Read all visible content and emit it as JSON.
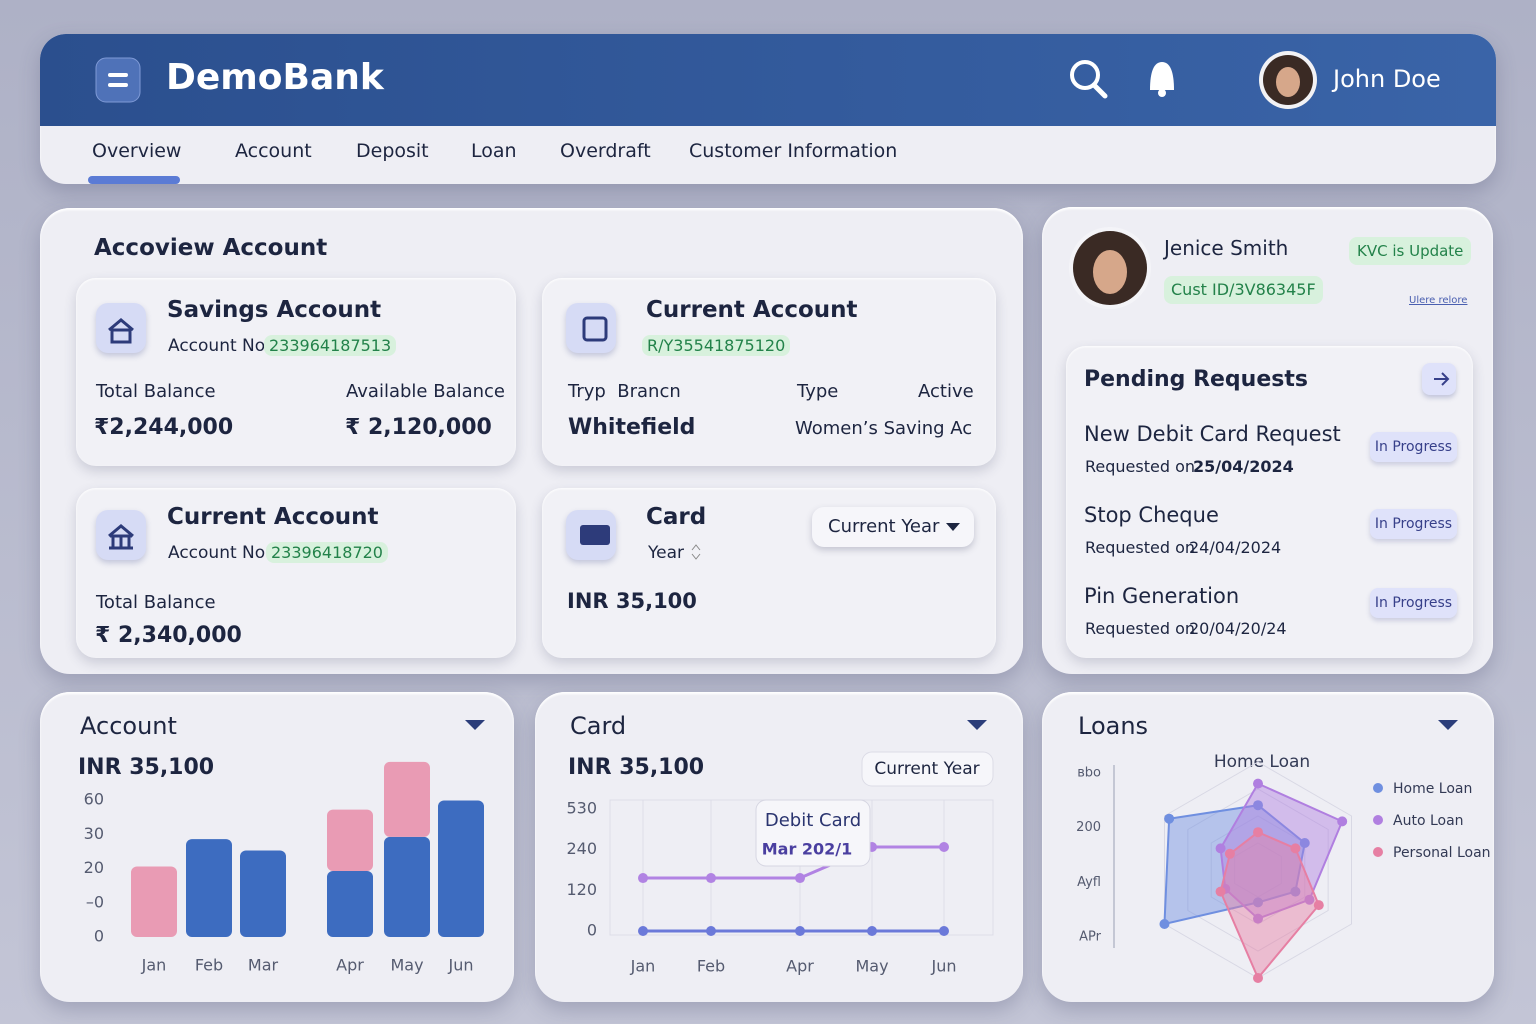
{
  "header": {
    "brand": "DemoBank",
    "user": "John Doe"
  },
  "nav": [
    "Overview",
    "Account",
    "Deposit",
    "Loan",
    "Overdraft",
    "Customer Information"
  ],
  "accounts": {
    "title": "Accoview Account",
    "cards": [
      {
        "title": "Savings Account",
        "number_label": "Account No",
        "number": "233964187513",
        "labels": [
          "Total Balance",
          "Available Balance"
        ],
        "values": [
          "₹2,244,000",
          "₹ 2,120,000"
        ]
      },
      {
        "title": "Current Account",
        "number": "R/Y35541875120",
        "labels": [
          "Tryp  Brancn",
          "Type",
          "Active"
        ],
        "values": [
          "Whitefield",
          "Women’s Saving Ac"
        ]
      },
      {
        "title": "Current Account",
        "number_label": "Account No",
        "number": "23396418720",
        "labels": [
          "Total Balance"
        ],
        "values": [
          "₹ 2,340,000"
        ]
      },
      {
        "title": "Card",
        "subtitle": "Year",
        "dropdown": "Current Year",
        "values": [
          "INR 35,100"
        ]
      }
    ]
  },
  "profile": {
    "name": "Jenice Smith",
    "status": "KVC is Update",
    "customer_id": "Cust ID/3V86345F",
    "link": "Ulere relore"
  },
  "pending": {
    "title": "Pending Requests",
    "items": [
      {
        "title": "New Debit Card Request",
        "label": "Requested on",
        "date": "25/04/2024",
        "status": "In Progress"
      },
      {
        "title": "Stop Cheque",
        "label": "Requested on",
        "date": "24/04/2024",
        "status": "In Progress"
      },
      {
        "title": "Pin Generation",
        "label": "Requested on",
        "date": "20/04/20/24",
        "status": "In Progress"
      }
    ]
  },
  "chart_data": [
    {
      "type": "bar",
      "title": "Account",
      "total": "INR 35,100",
      "categories": [
        "Jan",
        "Feb",
        "Mar",
        "Apr",
        "May",
        "Jun"
      ],
      "ylim": [
        0,
        80
      ],
      "y_labels": [
        "60",
        "30",
        "20",
        "–0",
        "0"
      ],
      "series": [
        {
          "color": "#3d6cc0",
          "values": [
            null,
            43,
            38,
            29,
            44,
            60
          ]
        },
        {
          "color": "#e99bb4",
          "values": [
            31,
            null,
            null,
            27,
            33,
            null
          ]
        }
      ]
    },
    {
      "type": "line",
      "title": "Card",
      "total": "INR 35,100",
      "badge": "Current Year",
      "tooltip": {
        "title": "Debit Card",
        "label": "Mar 202/1"
      },
      "categories": [
        "Jan",
        "Feb",
        "Apr",
        "May",
        "Jun"
      ],
      "ylim": [
        0,
        530
      ],
      "y_labels": [
        "530",
        "240",
        "120",
        "0"
      ],
      "series": [
        {
          "color": "#b183e3",
          "values": [
            230,
            230,
            230,
            365,
            365
          ]
        },
        {
          "color": "#6b79d9",
          "values": [
            0,
            0,
            0,
            0,
            0
          ]
        }
      ]
    },
    {
      "type": "radar",
      "title": "Loans",
      "subtitle": "Home Loan",
      "y_labels": [
        "ʙbo",
        "200",
        "Ayfl",
        "APr"
      ],
      "rlim": [
        0,
        100
      ],
      "series": [
        {
          "name": "Home Loan",
          "color": "#6f8fe0",
          "values": [
            60,
            50,
            40,
            30,
            100,
            95
          ]
        },
        {
          "name": "Auto Loan",
          "color": "#b07fe0",
          "values": [
            80,
            90,
            55,
            45,
            35,
            40
          ]
        },
        {
          "name": "Personal Loan",
          "color": "#e67fa3",
          "values": [
            35,
            40,
            65,
            100,
            40,
            30
          ]
        }
      ]
    }
  ]
}
